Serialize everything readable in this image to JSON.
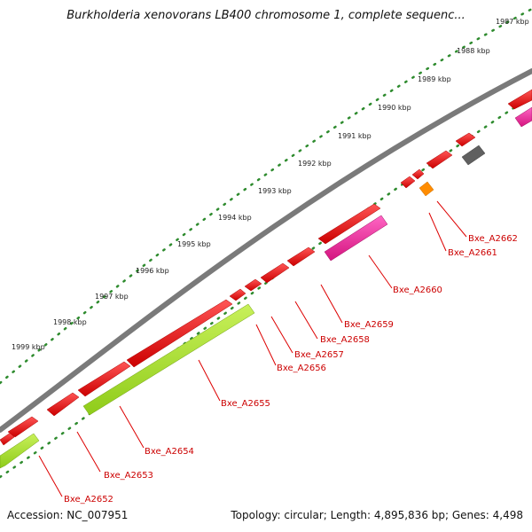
{
  "title": "Burkholderia xenovorans LB400 chromosome 1, complete sequenc...",
  "footer": {
    "accession": "Accession: NC_007951",
    "summary": "Topology: circular; Length: 4,895,836 bp; Genes: 4,498"
  },
  "ruler": {
    "ticks": [
      "1987 kbp",
      "1988 kbp",
      "1989 kbp",
      "1990 kbp",
      "1991 kbp",
      "1992 kbp",
      "1993 kbp",
      "1994 kbp",
      "1995 kbp",
      "1996 kbp",
      "1997 kbp",
      "1998 kbp",
      "1999 kbp"
    ]
  },
  "genes": [
    {
      "label": "Bxe_A2652"
    },
    {
      "label": "Bxe_A2653"
    },
    {
      "label": "Bxe_A2654"
    },
    {
      "label": "Bxe_A2655"
    },
    {
      "label": "Bxe_A2656"
    },
    {
      "label": "Bxe_A2657"
    },
    {
      "label": "Bxe_A2658"
    },
    {
      "label": "Bxe_A2659"
    },
    {
      "label": "Bxe_A2660"
    },
    {
      "label": "Bxe_A2661"
    },
    {
      "label": "Bxe_A2662"
    }
  ],
  "colors": {
    "backbone": "#7a7a7a",
    "gene_main": "#ee1111",
    "gene_lime": "#a6e22a",
    "gene_pink": "#ef2a9a",
    "gene_orange": "#ff8c00",
    "gene_gray": "#606060",
    "ruler_dots": "#2e8b2e",
    "label_color": "#cc0000"
  }
}
